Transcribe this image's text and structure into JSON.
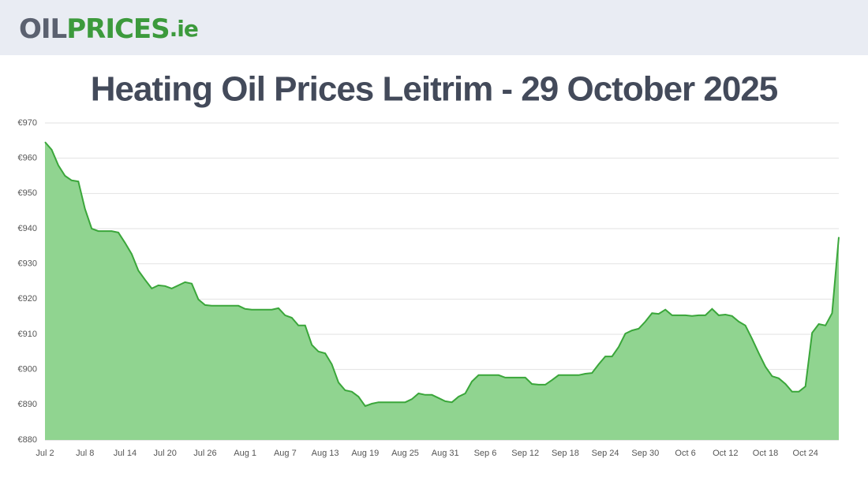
{
  "header": {
    "logo": {
      "first": "OIL",
      "second": "PRICES",
      "third": ".ie"
    }
  },
  "chart_data": {
    "type": "area",
    "title": "Heating Oil Prices Leitrim - 29 October 2025",
    "categories": [
      "Jul 2",
      null,
      null,
      null,
      null,
      null,
      "Jul 8",
      null,
      null,
      null,
      null,
      null,
      "Jul 14",
      null,
      null,
      null,
      null,
      null,
      "Jul 20",
      null,
      null,
      null,
      null,
      null,
      "Jul 26",
      null,
      null,
      null,
      null,
      null,
      "Aug 1",
      null,
      null,
      null,
      null,
      null,
      "Aug 7",
      null,
      null,
      null,
      null,
      null,
      "Aug 13",
      null,
      null,
      null,
      null,
      null,
      "Aug 19",
      null,
      null,
      null,
      null,
      null,
      "Aug 25",
      null,
      null,
      null,
      null,
      null,
      "Aug 31",
      null,
      null,
      null,
      null,
      null,
      "Sep 6",
      null,
      null,
      null,
      null,
      null,
      "Sep 12",
      null,
      null,
      null,
      null,
      null,
      "Sep 18",
      null,
      null,
      null,
      null,
      null,
      "Sep 24",
      null,
      null,
      null,
      null,
      null,
      "Sep 30",
      null,
      null,
      null,
      null,
      null,
      "Oct 6",
      null,
      null,
      null,
      null,
      null,
      "Oct 12",
      null,
      null,
      null,
      null,
      null,
      "Oct 18",
      null,
      null,
      null,
      null,
      null,
      "Oct 24",
      null,
      null,
      null,
      null,
      null
    ],
    "series": [
      {
        "color": "#3aa63a",
        "fill": "#90d490",
        "values": [
          964.6,
          962.4,
          958,
          955,
          953.7,
          953.4,
          945.6,
          940,
          939.3,
          939.3,
          939.3,
          938.9,
          936,
          932.8,
          928.1,
          925.5,
          923,
          923.9,
          923.7,
          923,
          923.9,
          924.8,
          924.4,
          919.9,
          918.3,
          918.1,
          918.1,
          918.1,
          918.1,
          918.1,
          917.2,
          917,
          917,
          917,
          917,
          917.4,
          915.4,
          914.7,
          912.5,
          912.5,
          907,
          905.1,
          904.6,
          901.5,
          896.3,
          894.1,
          893.7,
          892.3,
          889.6,
          890.3,
          890.7,
          890.7,
          890.7,
          890.7,
          890.7,
          891.6,
          893.2,
          892.8,
          892.8,
          891.9,
          891,
          890.7,
          892.3,
          893.2,
          896.6,
          898.4,
          898.4,
          898.4,
          898.4,
          897.7,
          897.7,
          897.7,
          897.7,
          895.9,
          895.7,
          895.7,
          897,
          898.4,
          898.4,
          898.4,
          898.4,
          898.8,
          899,
          901.5,
          903.7,
          903.7,
          906.4,
          910.2,
          911.1,
          911.6,
          913.6,
          916,
          915.8,
          917,
          915.4,
          915.4,
          915.4,
          915.2,
          915.4,
          915.4,
          917.2,
          915.4,
          915.6,
          915.2,
          913.6,
          912.5,
          908.7,
          904.6,
          900.8,
          898.1,
          897.5,
          895.9,
          893.7,
          893.7,
          895.2,
          910.4,
          912.9,
          912.5,
          916,
          937.6
        ]
      }
    ],
    "ylim": [
      880,
      970
    ],
    "yticks": [
      {
        "value": 880,
        "label": "€880"
      },
      {
        "value": 890,
        "label": "€890"
      },
      {
        "value": 900,
        "label": "€900"
      },
      {
        "value": 910,
        "label": "€910"
      },
      {
        "value": 920,
        "label": "€920"
      },
      {
        "value": 930,
        "label": "€930"
      },
      {
        "value": 940,
        "label": "€940"
      },
      {
        "value": 950,
        "label": "€950"
      },
      {
        "value": 960,
        "label": "€960"
      },
      {
        "value": 970,
        "label": "€970"
      }
    ],
    "grid": true
  }
}
